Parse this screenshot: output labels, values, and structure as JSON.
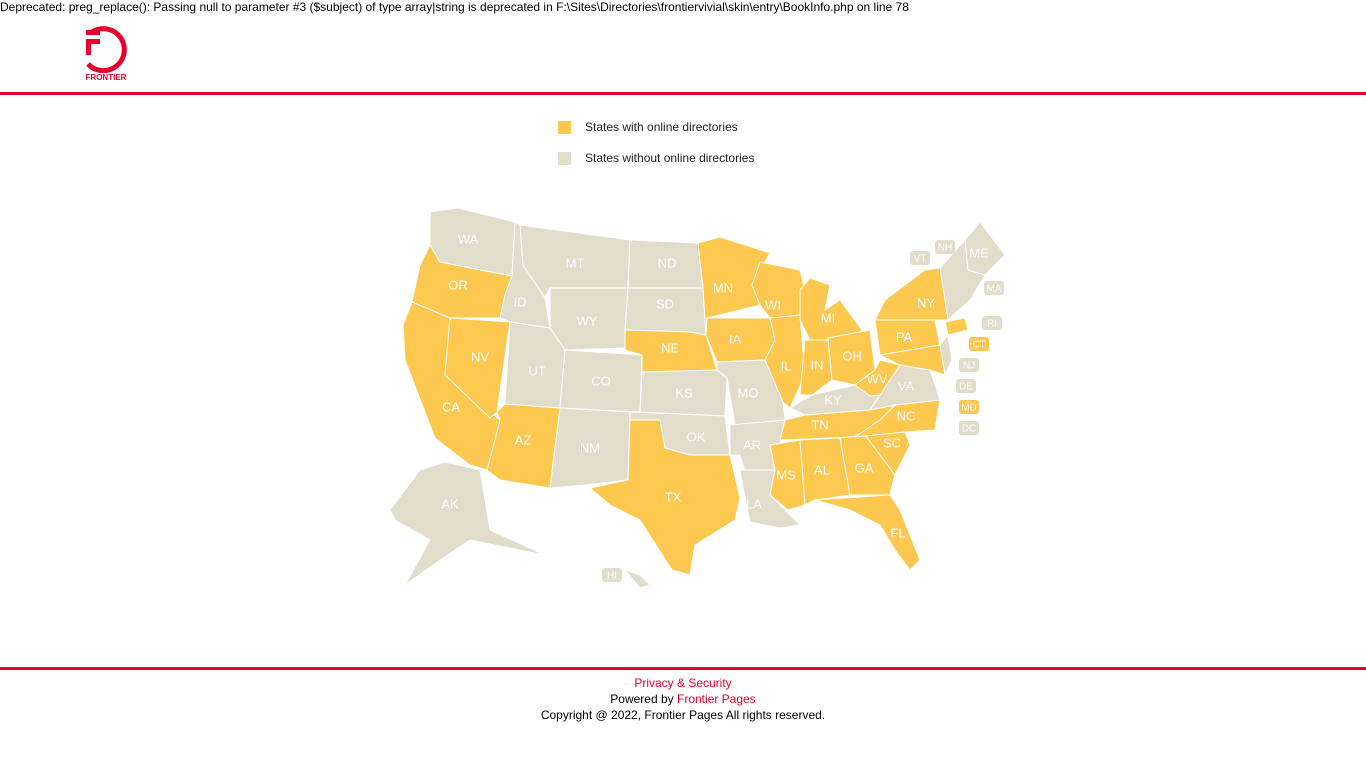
{
  "notice": "Deprecated: preg_replace(): Passing null to parameter #3 ($subject) of type array|string is deprecated in F:\\Sites\\Directories\\frontiervivial\\skin\\entry\\BookInfo.php on line 78",
  "logo": {
    "text": "FRONTIER"
  },
  "legend": [
    {
      "label": "States with online directories",
      "color": "#fcc84f"
    },
    {
      "label": "States without online directories",
      "color": "#e2dccb"
    }
  ],
  "states": [
    {
      "label": "WA",
      "color": "#e2dccb"
    },
    {
      "label": "OR",
      "color": "#fcc84f"
    },
    {
      "label": "CA",
      "color": "#fcc84f"
    },
    {
      "label": "NV",
      "color": "#fcc84f"
    },
    {
      "label": "ID",
      "color": "#e2dccb"
    },
    {
      "label": "MT",
      "color": "#e2dccb"
    },
    {
      "label": "WY",
      "color": "#e2dccb"
    },
    {
      "label": "UT",
      "color": "#e2dccb"
    },
    {
      "label": "CO",
      "color": "#e2dccb"
    },
    {
      "label": "AZ",
      "color": "#fcc84f"
    },
    {
      "label": "NM",
      "color": "#e2dccb"
    },
    {
      "label": "ND",
      "color": "#e2dccb"
    },
    {
      "label": "SD",
      "color": "#e2dccb"
    },
    {
      "label": "NE",
      "color": "#fcc84f"
    },
    {
      "label": "KS",
      "color": "#e2dccb"
    },
    {
      "label": "OK",
      "color": "#e2dccb"
    },
    {
      "label": "TX",
      "color": "#fcc84f"
    },
    {
      "label": "MN",
      "color": "#fcc84f"
    },
    {
      "label": "IA",
      "color": "#fcc84f"
    },
    {
      "label": "MO",
      "color": "#e2dccb"
    },
    {
      "label": "AR",
      "color": "#e2dccb"
    },
    {
      "label": "LA",
      "color": "#e2dccb"
    },
    {
      "label": "WI",
      "color": "#fcc84f"
    },
    {
      "label": "IL",
      "color": "#fcc84f"
    },
    {
      "label": "MI",
      "color": "#fcc84f"
    },
    {
      "label": "IN",
      "color": "#fcc84f"
    },
    {
      "label": "OH",
      "color": "#fcc84f"
    },
    {
      "label": "KY",
      "color": "#e2dccb"
    },
    {
      "label": "TN",
      "color": "#fcc84f"
    },
    {
      "label": "MS",
      "color": "#fcc84f"
    },
    {
      "label": "AL",
      "color": "#fcc84f"
    },
    {
      "label": "GA",
      "color": "#fcc84f"
    },
    {
      "label": "FL",
      "color": "#fcc84f"
    },
    {
      "label": "SC",
      "color": "#fcc84f"
    },
    {
      "label": "NC",
      "color": "#fcc84f"
    },
    {
      "label": "VA",
      "color": "#e2dccb"
    },
    {
      "label": "WV",
      "color": "#fcc84f"
    },
    {
      "label": "PA",
      "color": "#fcc84f"
    },
    {
      "label": "NY",
      "color": "#fcc84f"
    },
    {
      "label": "ME",
      "color": "#e2dccb"
    },
    {
      "label": "AK",
      "color": "#e2dccb"
    },
    {
      "label": "HI",
      "color": "#e2dccb"
    },
    {
      "label": "VT",
      "color": "#e2dccb"
    },
    {
      "label": "NH",
      "color": "#e2dccb"
    },
    {
      "label": "MA",
      "color": "#e2dccb"
    },
    {
      "label": "RI",
      "color": "#e2dccb"
    },
    {
      "label": "CT",
      "color": "#fcc84f"
    },
    {
      "label": "NJ",
      "color": "#e2dccb"
    },
    {
      "label": "DE",
      "color": "#e2dccb"
    },
    {
      "label": "MD",
      "color": "#fcc84f"
    },
    {
      "label": "DC",
      "color": "#e2dccb"
    }
  ],
  "footer": {
    "privacy": "Privacy & Security",
    "powered_by": "Powered by",
    "powered_link": "Frontier Pages",
    "copyright": "Copyright @ 2022, Frontier Pages All rights reserved."
  }
}
